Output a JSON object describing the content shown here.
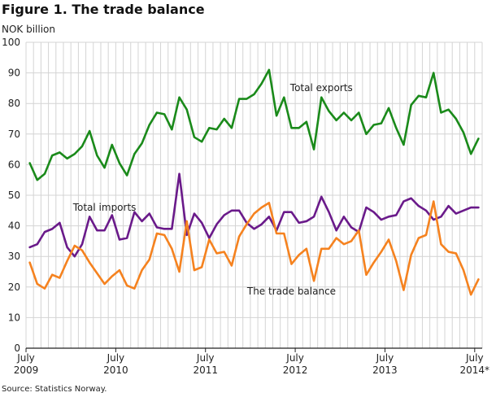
{
  "figure_title": "Figure 1. The trade balance",
  "source": "Source: Statistics Norway.",
  "chart_data": {
    "type": "line",
    "ylabel": "NOK billion",
    "ylim": [
      0,
      100
    ],
    "yticks": [
      0,
      10,
      20,
      30,
      40,
      50,
      60,
      70,
      80,
      90,
      100
    ],
    "x_start": "2009-07",
    "n_points": 61,
    "x_tick_labels": [
      {
        "index": 0,
        "line1": "July",
        "line2": "2009"
      },
      {
        "index": 12,
        "line1": "July",
        "line2": "2010"
      },
      {
        "index": 24,
        "line1": "July",
        "line2": "2011"
      },
      {
        "index": 36,
        "line1": "July",
        "line2": "2012"
      },
      {
        "index": 48,
        "line1": "July",
        "line2": "2013"
      },
      {
        "index": 60,
        "line1": "July",
        "line2": "2014*"
      }
    ],
    "grid": true,
    "series": [
      {
        "name": "Total exports",
        "color": "#1a8a1a",
        "label_anchor_index": 39,
        "label_value": 84,
        "values": [
          60.5,
          55,
          57,
          63,
          64,
          62,
          63.5,
          66,
          71,
          63,
          59,
          66.5,
          60.5,
          56.5,
          63.5,
          67,
          73,
          77,
          76.5,
          71.5,
          82,
          78,
          69,
          67.5,
          72,
          71.5,
          75,
          72,
          81.5,
          81.5,
          83,
          86.5,
          91,
          76,
          82,
          72,
          72,
          74,
          65,
          82,
          77.5,
          74.5,
          77,
          74.5,
          77,
          70,
          73,
          73.5,
          78.5,
          72,
          66.5,
          79.5,
          82.5,
          82,
          90,
          77,
          78,
          75,
          70.5,
          63.5,
          68.5
        ]
      },
      {
        "name": "Total imports",
        "color": "#6a1a8a",
        "label_anchor_index": 10,
        "label_value": 45,
        "values": [
          33,
          34,
          38,
          39,
          41,
          33,
          30,
          34,
          43,
          38.5,
          38.5,
          43.5,
          35.5,
          36,
          44.5,
          41.5,
          44,
          39.5,
          39,
          39,
          57,
          37,
          44,
          41,
          36,
          40.5,
          43.5,
          45,
          45,
          41,
          39,
          40.5,
          43,
          38.5,
          44.5,
          44.5,
          41,
          41.5,
          43,
          49.5,
          44.5,
          38.5,
          43,
          39.5,
          38,
          46,
          44.5,
          42,
          43,
          43.5,
          48,
          49,
          46.5,
          45,
          42,
          43,
          46.5,
          44,
          45,
          46,
          46
        ]
      },
      {
        "name": "The trade balance",
        "color": "#f5821f",
        "label_anchor_index": 35,
        "label_value": 17.5,
        "values": [
          28,
          21,
          19.5,
          24,
          23,
          28.5,
          33.5,
          32,
          28,
          24.5,
          21,
          23.5,
          25.5,
          20.5,
          19.5,
          25.5,
          29,
          37.5,
          37,
          32.5,
          25,
          41.5,
          25.5,
          26.5,
          35.5,
          31,
          31.5,
          27,
          36.5,
          40.5,
          44,
          46,
          47.5,
          37.5,
          37.5,
          27.5,
          30.5,
          32.5,
          22,
          32.5,
          32.5,
          36,
          34,
          35,
          38.5,
          24,
          28,
          31.5,
          35.5,
          28.5,
          19,
          30.5,
          36,
          37,
          48,
          34,
          31.5,
          31,
          25.5,
          17.5,
          22.5
        ]
      }
    ]
  }
}
